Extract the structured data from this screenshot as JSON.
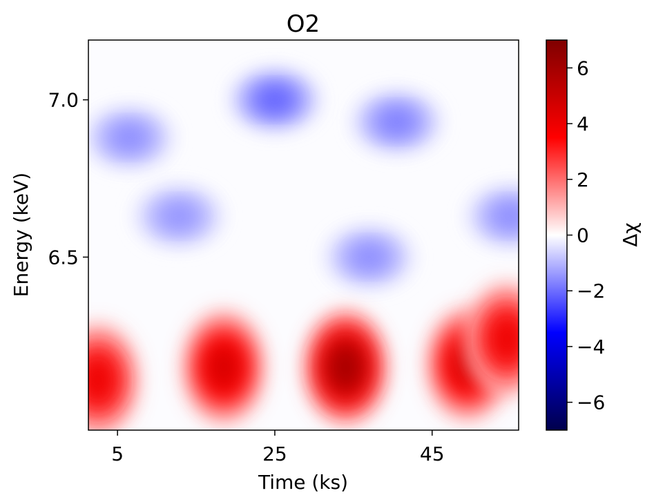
{
  "chart_data": {
    "type": "heatmap",
    "title": "O2",
    "xlabel": "Time (ks)",
    "ylabel": "Energy (keV)",
    "xlim": [
      1.3,
      56
    ],
    "ylim": [
      5.95,
      7.19
    ],
    "xticks": [
      5,
      25,
      45
    ],
    "xtick_labels": [
      "5",
      "25",
      "45"
    ],
    "yticks": [
      6.5,
      7.0
    ],
    "ytick_labels": [
      "6.5",
      "7.0"
    ],
    "colorbar": {
      "label": "Δχ",
      "colormap": "seismic",
      "range": [
        -7,
        7
      ],
      "ticks": [
        6,
        4,
        2,
        0,
        -2,
        -4,
        -6
      ],
      "tick_labels": [
        "6",
        "4",
        "2",
        "0",
        "−2",
        "−4",
        "−6"
      ],
      "colors": [
        "#00004c",
        "#0000ff",
        "#ffffff",
        "#ff0000",
        "#7f0000"
      ]
    },
    "blobs": [
      {
        "sign": "negative",
        "x": 6.5,
        "y": 6.88,
        "amplitude": -1.6
      },
      {
        "sign": "negative",
        "x": 12.8,
        "y": 6.63,
        "amplitude": -1.5
      },
      {
        "sign": "negative",
        "x": 25.0,
        "y": 7.0,
        "amplitude": -2.2
      },
      {
        "sign": "negative",
        "x": 37.0,
        "y": 6.5,
        "amplitude": -1.6
      },
      {
        "sign": "negative",
        "x": 40.5,
        "y": 6.93,
        "amplitude": -1.8
      },
      {
        "sign": "negative",
        "x": 55.0,
        "y": 6.63,
        "amplitude": -1.6
      },
      {
        "sign": "positive",
        "x": 2.5,
        "y": 6.11,
        "amplitude": 4.0
      },
      {
        "sign": "positive",
        "x": 18.5,
        "y": 6.15,
        "amplitude": 4.6
      },
      {
        "sign": "positive",
        "x": 34.0,
        "y": 6.15,
        "amplitude": 6.0
      },
      {
        "sign": "positive",
        "x": 49.5,
        "y": 6.16,
        "amplitude": 4.6
      },
      {
        "sign": "positive",
        "x": 54.5,
        "y": 6.24,
        "amplitude": 4.0
      }
    ]
  }
}
